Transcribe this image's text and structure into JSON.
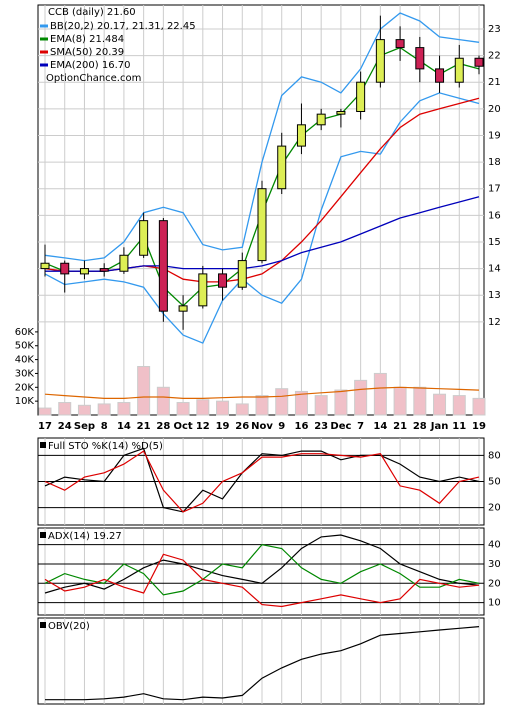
{
  "chart_data": [
    {
      "type": "candlestick",
      "title": "CCB (daily) 21.60",
      "watermark": "OptionChance.com",
      "categories": [
        "17",
        "24",
        "Sep",
        "8",
        "14",
        "21",
        "28",
        "Oct",
        "12",
        "19",
        "26",
        "Nov",
        "9",
        "16",
        "23",
        "Dec",
        "7",
        "14",
        "21",
        "28",
        "Jan",
        "11",
        "19"
      ],
      "open": [
        14.0,
        14.2,
        13.8,
        14.0,
        13.9,
        14.5,
        15.8,
        12.4,
        12.6,
        13.8,
        13.3,
        14.3,
        17.0,
        18.6,
        19.4,
        19.8,
        19.9,
        21.0,
        22.6,
        22.3,
        21.5,
        21.0,
        21.9
      ],
      "high": [
        14.9,
        14.3,
        14.3,
        14.2,
        14.8,
        16.1,
        15.9,
        13.0,
        14.1,
        14.0,
        14.6,
        17.3,
        19.1,
        20.2,
        20.0,
        20.0,
        21.4,
        23.5,
        23.1,
        22.7,
        22.0,
        22.4,
        22.0
      ],
      "low": [
        13.7,
        13.1,
        13.6,
        13.7,
        13.8,
        14.4,
        12.0,
        11.7,
        12.5,
        12.8,
        13.2,
        14.2,
        16.8,
        18.3,
        19.2,
        19.3,
        19.6,
        20.8,
        21.8,
        21.0,
        20.6,
        20.8,
        21.3
      ],
      "close": [
        14.2,
        13.8,
        14.0,
        13.9,
        14.5,
        15.8,
        12.4,
        12.6,
        13.8,
        13.3,
        14.3,
        17.0,
        18.6,
        19.4,
        19.8,
        19.9,
        21.0,
        22.6,
        22.3,
        21.5,
        21.0,
        21.9,
        21.6
      ],
      "up_color": "#ddee55",
      "down_color": "#cc2255",
      "series": [
        {
          "name": "BB(20,2) 20.17, 21.31, 22.45",
          "color": "#3399ee",
          "values": [
            14.5,
            14.4,
            14.3,
            14.4,
            15.0,
            16.1,
            16.3,
            16.1,
            14.9,
            14.7,
            14.8,
            18.0,
            20.5,
            21.2,
            21.0,
            20.6,
            21.5,
            23.0,
            23.6,
            23.3,
            22.7,
            22.6,
            22.5
          ],
          "lower": [
            13.8,
            13.4,
            13.5,
            13.6,
            13.5,
            13.3,
            12.3,
            11.5,
            11.2,
            12.8,
            13.6,
            13.0,
            12.7,
            13.6,
            16.2,
            18.2,
            18.4,
            18.3,
            19.5,
            20.3,
            20.6,
            20.4,
            20.2
          ]
        },
        {
          "name": "EMA(8) 21.484",
          "color": "#008800",
          "values": [
            14.2,
            13.9,
            13.9,
            13.9,
            14.3,
            15.2,
            13.3,
            12.6,
            13.3,
            13.4,
            14.0,
            16.1,
            17.9,
            19.0,
            19.6,
            19.8,
            20.6,
            22.0,
            22.3,
            21.8,
            21.3,
            21.7,
            21.5
          ]
        },
        {
          "name": "SMA(50) 20.39",
          "color": "#dd0000",
          "values": [
            14.0,
            13.9,
            13.9,
            13.9,
            14.0,
            14.1,
            14.0,
            13.6,
            13.5,
            13.5,
            13.6,
            13.8,
            14.3,
            15.0,
            15.8,
            16.7,
            17.6,
            18.5,
            19.3,
            19.8,
            20.0,
            20.2,
            20.4
          ]
        },
        {
          "name": "EMA(200) 16.70",
          "color": "#0000bb",
          "values": [
            13.9,
            13.9,
            13.9,
            13.9,
            14.0,
            14.1,
            14.1,
            14.0,
            14.0,
            14.0,
            14.0,
            14.1,
            14.3,
            14.6,
            14.8,
            15.0,
            15.3,
            15.6,
            15.9,
            16.1,
            16.3,
            16.5,
            16.7
          ]
        }
      ],
      "ylim": [
        8.5,
        23.9
      ],
      "yticks": [
        12,
        13,
        14,
        15,
        16,
        17,
        18,
        19,
        20,
        21,
        22,
        23
      ],
      "grid": true,
      "volume": {
        "color": "#f0c0c8",
        "values": [
          5000,
          9000,
          7000,
          8000,
          9000,
          35000,
          20000,
          9000,
          11000,
          10000,
          8000,
          14000,
          19000,
          17000,
          14000,
          18000,
          25000,
          30000,
          20000,
          20000,
          15000,
          14000,
          12000
        ],
        "average": {
          "color": "#dd6600",
          "values": [
            15000,
            14000,
            13000,
            12000,
            12000,
            13000,
            13000,
            12000,
            12000,
            12500,
            13000,
            13000,
            13500,
            15000,
            16000,
            17000,
            18500,
            19500,
            20000,
            19500,
            19000,
            18500,
            18000
          ]
        },
        "ylim": [
          0,
          296000
        ],
        "yticks": [
          {
            "value": 10000,
            "label": "10K"
          },
          {
            "value": 20000,
            "label": "20K"
          },
          {
            "value": 30000,
            "label": "30K"
          },
          {
            "value": 40000,
            "label": "40K"
          },
          {
            "value": 50000,
            "label": "50K"
          },
          {
            "value": 60000,
            "label": "60K"
          }
        ]
      }
    },
    {
      "type": "line",
      "title": "Full STO %K(14) %D(5)",
      "series": [
        {
          "color": "#000000",
          "values": [
            45,
            55,
            52,
            50,
            80,
            88,
            20,
            15,
            40,
            30,
            60,
            82,
            80,
            85,
            85,
            75,
            80,
            80,
            70,
            55,
            50,
            55,
            50
          ]
        },
        {
          "color": "#dd0000",
          "values": [
            50,
            40,
            55,
            60,
            70,
            85,
            40,
            15,
            25,
            50,
            60,
            78,
            78,
            82,
            82,
            80,
            78,
            82,
            45,
            40,
            25,
            50,
            55
          ]
        }
      ],
      "ylim": [
        0,
        100
      ],
      "yticks": [
        20,
        50,
        80
      ]
    },
    {
      "type": "line",
      "title": "ADX(14) 19.27",
      "series": [
        {
          "color": "#000000",
          "values": [
            15,
            18,
            20,
            17,
            22,
            28,
            32,
            30,
            27,
            24,
            22,
            20,
            28,
            38,
            44,
            45,
            42,
            38,
            30,
            26,
            22,
            20,
            19
          ]
        },
        {
          "color": "#008800",
          "values": [
            20,
            25,
            22,
            20,
            30,
            25,
            14,
            16,
            22,
            30,
            28,
            40,
            38,
            28,
            22,
            20,
            26,
            30,
            25,
            18,
            18,
            22,
            20
          ]
        },
        {
          "color": "#dd0000",
          "values": [
            22,
            16,
            18,
            22,
            18,
            15,
            35,
            32,
            22,
            20,
            18,
            9,
            8,
            10,
            12,
            14,
            12,
            10,
            12,
            22,
            20,
            18,
            19
          ]
        }
      ],
      "ylim": [
        3.6,
        48.6
      ],
      "yticks": [
        10,
        20,
        30,
        40
      ]
    },
    {
      "type": "line",
      "title": "OBV(20)",
      "series": [
        {
          "color": "#000000",
          "values": [
            5,
            5,
            5,
            6,
            8,
            12,
            6,
            5,
            8,
            7,
            10,
            30,
            42,
            52,
            58,
            62,
            70,
            80,
            82,
            84,
            86,
            88,
            90
          ]
        }
      ],
      "ylim": [
        0,
        100
      ],
      "yticks": []
    }
  ]
}
